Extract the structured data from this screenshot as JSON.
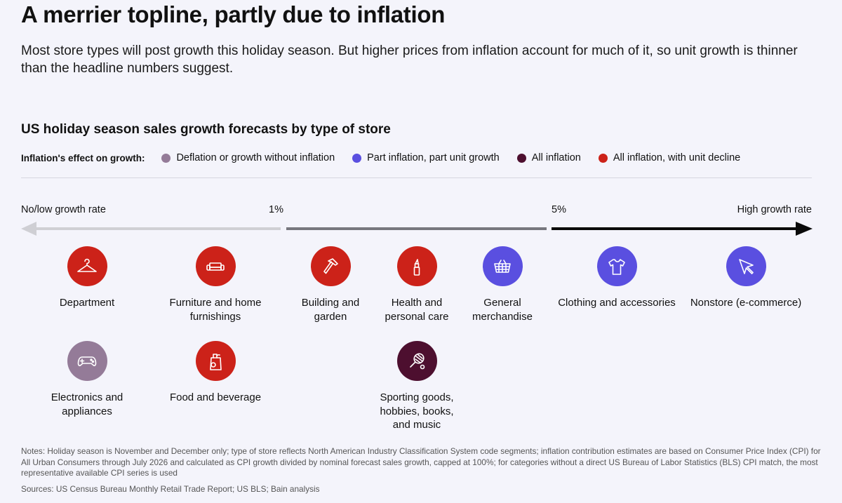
{
  "title": "A merrier topline, partly due to inflation",
  "subtitle": "Most store types will post growth this holiday season. But higher prices from inflation account for much of it, so unit growth is thinner than the headline numbers suggest.",
  "chart_data": {
    "type": "categorical-scale",
    "title": "US holiday season sales growth forecasts by type of store",
    "legend": {
      "label": "Inflation's effect on growth:",
      "items": [
        {
          "key": "deflation",
          "label": "Deflation or growth without inflation",
          "color": "#947b98"
        },
        {
          "key": "part",
          "label": "Part inflation, part unit growth",
          "color": "#5a4fe0"
        },
        {
          "key": "all",
          "label": "All inflation",
          "color": "#4d0f2f"
        },
        {
          "key": "decline",
          "label": "All inflation, with unit decline",
          "color": "#cc2219"
        }
      ]
    },
    "axis": {
      "low_label": "No/low growth rate",
      "high_label": "High growth rate",
      "threshold_1": "1%",
      "threshold_2": "5%",
      "segment_colors": [
        "#cfcfd4",
        "#77777e",
        "#0a0a0a"
      ]
    },
    "stores": [
      {
        "label": "Department",
        "growth_band": "No/low",
        "effect": "decline",
        "icon": "hanger-icon"
      },
      {
        "label": "Furniture and home\nfurnishings",
        "growth_band": "No/low",
        "effect": "decline",
        "icon": "sofa-icon"
      },
      {
        "label": "Electronics and\nappliances",
        "growth_band": "No/low",
        "effect": "deflation",
        "icon": "gamepad-icon"
      },
      {
        "label": "Food and beverage",
        "growth_band": "No/low",
        "effect": "decline",
        "icon": "grocery-bag-icon"
      },
      {
        "label": "Building and\ngarden",
        "growth_band": "1%-5%",
        "effect": "decline",
        "icon": "hammer-icon"
      },
      {
        "label": "Health and\npersonal care",
        "growth_band": "1%-5%",
        "effect": "decline",
        "icon": "lipstick-icon"
      },
      {
        "label": "General\nmerchandise",
        "growth_band": "1%-5%",
        "effect": "part",
        "icon": "basket-icon"
      },
      {
        "label": "Sporting goods,\nhobbies, books,\nand music",
        "growth_band": "1%-5%",
        "effect": "all",
        "icon": "tennis-racket-icon"
      },
      {
        "label": "Clothing and accessories",
        "growth_band": "High",
        "effect": "part",
        "icon": "tshirt-icon"
      },
      {
        "label": "Nonstore (e-commerce)",
        "growth_band": "High",
        "effect": "part",
        "icon": "cursor-icon"
      }
    ]
  },
  "notes": "Notes: Holiday season is November and December only; type of store reflects North American Industry Classification System code segments; inflation contribution estimates are based on Consumer Price Index (CPI) for All Urban Consumers through July 2026 and calculated as CPI growth divided by nominal forecast sales growth, capped at 100%; for categories without a direct US Bureau of Labor Statistics (BLS) CPI match, the most representative available CPI series is used",
  "sources": "Sources: US Census Bureau Monthly Retail Trade Report; US BLS; Bain analysis"
}
